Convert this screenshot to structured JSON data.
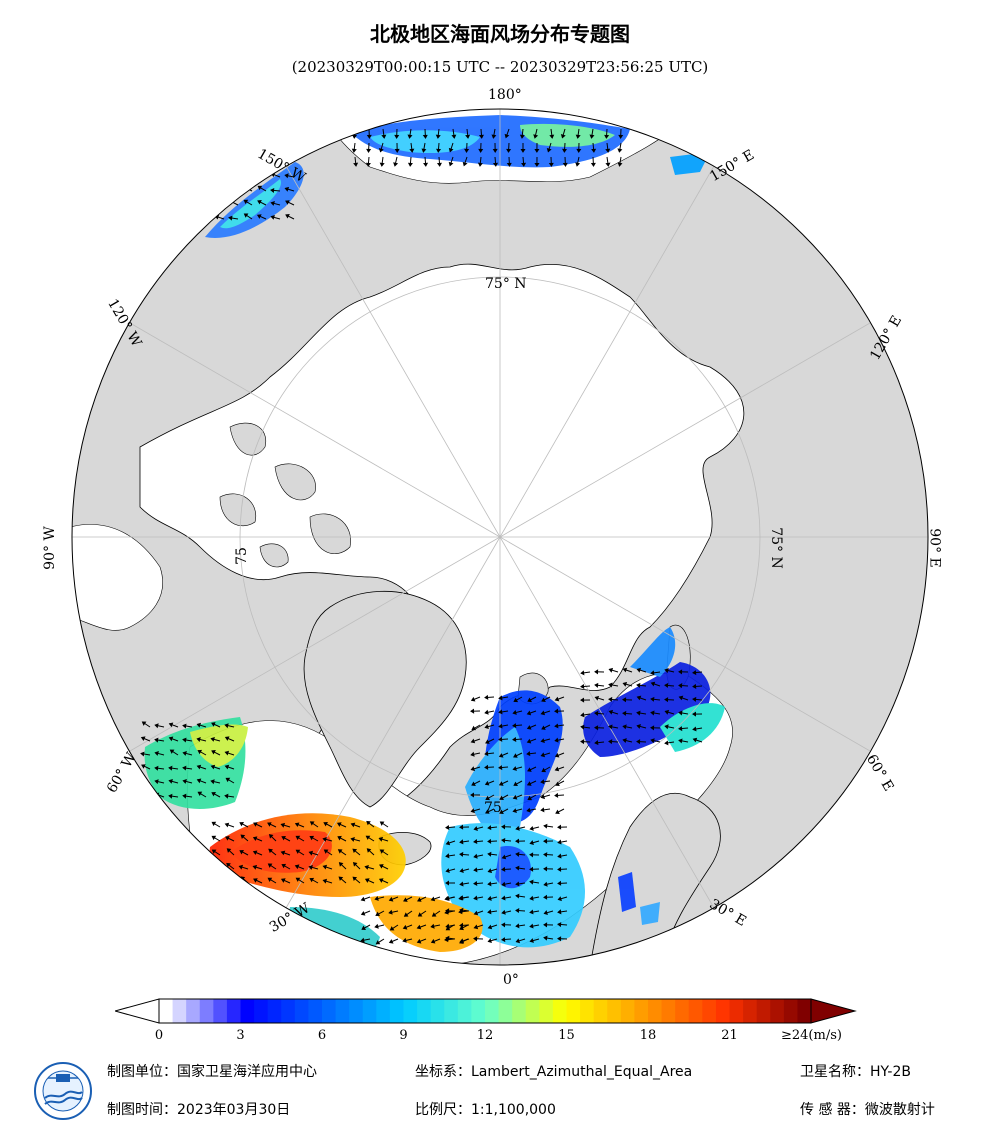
{
  "title": "北极地区海面风场分布专题图",
  "subtitle": "(20230329T00:00:15 UTC -- 20230329T23:56:25 UTC)",
  "map": {
    "projection_note": "Lambert Azimuthal Equal Area, north polar",
    "lon_labels": [
      "180°",
      "150° E",
      "120° E",
      "90° E",
      "60° E",
      "30° E",
      "0°",
      "30° W",
      "60° W",
      "90° W",
      "120° W",
      "150° W"
    ],
    "lat_labels": [
      "75° N",
      "75° N",
      "75",
      "75"
    ],
    "colors": {
      "land": "#d8d8d8",
      "ocean_no_data": "#ffffff",
      "coast": "#000000",
      "grid": "#bdbdbd"
    }
  },
  "colorbar": {
    "ticks": [
      "0",
      "3",
      "6",
      "9",
      "12",
      "15",
      "18",
      "21",
      "≥24(m/s)"
    ],
    "min": 0,
    "max": 24,
    "unit": "m/s",
    "colors": [
      "#ffffff",
      "#0000ff",
      "#0066ff",
      "#00ccff",
      "#66ffcc",
      "#ffff00",
      "#ff9900",
      "#ff3300",
      "#800000"
    ]
  },
  "footer": {
    "unit_label": "制图单位：国家卫星海洋应用中心",
    "date_label": "制图时间：2023年03月30日",
    "crs_label": "坐标系：Lambert_Azimuthal_Equal_Area",
    "scale_label": "比例尺：1:1,100,000",
    "satellite_label": "卫星名称：HY-2B",
    "sensor_label": "传 感 器：微波散射计"
  }
}
